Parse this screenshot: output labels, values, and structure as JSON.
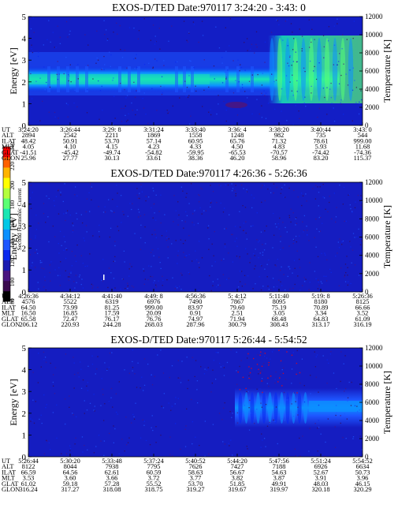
{
  "figure": {
    "colorbar": {
      "label": "Second Harmonic Current",
      "ticks": [
        "80",
        "100",
        "120",
        "140",
        "160",
        "180",
        "200",
        "220",
        "240"
      ],
      "colors": [
        "#000000",
        "#3a0a4e",
        "#4a1580",
        "#1a1ab0",
        "#0a28ee",
        "#1e56ff",
        "#0c90ff",
        "#00c8e6",
        "#19e6b3",
        "#5aff73",
        "#b4ff3c",
        "#ffff00",
        "#ffb400",
        "#ff6000",
        "#ff0000"
      ]
    }
  },
  "chart_data": [
    {
      "type": "heatmap",
      "title": "EXOS-D/TED   Date:970117   3:24:20 - 3:43: 0",
      "ylabel": "Energy [eV]",
      "ylim": [
        0,
        5
      ],
      "yticks": [
        "0",
        "1",
        "2",
        "3",
        "4",
        "5"
      ],
      "y2label": "Temperature [K]",
      "y2lim": [
        0,
        12000
      ],
      "y2ticks": [
        "0",
        "2000",
        "4000",
        "6000",
        "8000",
        "10000",
        "12000"
      ],
      "row_labels": [
        "UT",
        "ALT",
        "ILAT",
        "MLT",
        "GLAT",
        "GLON"
      ],
      "columns": [
        [
          "3:24:20",
          "2894",
          "48.42",
          "4.05",
          "-41.51",
          "25.96"
        ],
        [
          "3:26:44",
          "2542",
          "50.91",
          "4.10",
          "-45.42",
          "27.77"
        ],
        [
          "3:29: 8",
          "2211",
          "53.70",
          "4.15",
          "-49.74",
          "30.13"
        ],
        [
          "3:31:24",
          "1869",
          "57.14",
          "4.23",
          "-54.82",
          "33.61"
        ],
        [
          "3:33:40",
          "1558",
          "60.95",
          "4.33",
          "-59.95",
          "38.36"
        ],
        [
          "3:36: 4",
          "1248",
          "65.76",
          "4.50",
          "-65.53",
          "46.20"
        ],
        [
          "3:38:20",
          "982",
          "71.32",
          "4.83",
          "-70.57",
          "58.96"
        ],
        [
          "3:40:44",
          "735",
          "78.61",
          "5.93",
          "-74.42",
          "83.20"
        ],
        [
          "3:43: 0",
          "544",
          "999.00",
          "11.68",
          "-74.36",
          "115.37"
        ]
      ],
      "features": [
        {
          "x_from": 0,
          "x_to": 0.92,
          "y_from": 1.5,
          "y_to": 2.7,
          "color": "#00c8e6"
        },
        {
          "x_from": 0.58,
          "x_to": 1.0,
          "y_from": 1.6,
          "y_to": 4.8,
          "color": "#19e6b3"
        }
      ]
    },
    {
      "type": "heatmap",
      "title": "EXOS-D/TED   Date:970117   4:26:36 - 5:26:36",
      "ylabel": "Energy [eV]",
      "ylim": [
        0,
        5
      ],
      "yticks": [
        "0",
        "1",
        "2",
        "3",
        "4",
        "5"
      ],
      "y2label": "Temperature [K]",
      "y2lim": [
        0,
        12000
      ],
      "y2ticks": [
        "0",
        "2000",
        "4000",
        "6000",
        "8000",
        "10000",
        "12000"
      ],
      "row_labels": [
        "UT",
        "ALT",
        "ILAT",
        "MLT",
        "GLAT",
        "GLON"
      ],
      "columns": [
        [
          "4:26:36",
          "4576",
          "64.50",
          "16.50",
          "65.58",
          "206.12"
        ],
        [
          "4:34:12",
          "5522",
          "73.99",
          "16.85",
          "72.47",
          "220.93"
        ],
        [
          "4:41:40",
          "6319",
          "81.25",
          "17.59",
          "76.17",
          "244.28"
        ],
        [
          "4:49: 8",
          "6976",
          "999.00",
          "20.09",
          "76.76",
          "268.03"
        ],
        [
          "4:56:36",
          "7490",
          "83.97",
          "0.91",
          "74.97",
          "287.96"
        ],
        [
          "5: 4:12",
          "7867",
          "79.60",
          "2.51",
          "71.94",
          "300.79"
        ],
        [
          "5:11:40",
          "8095",
          "75.19",
          "3.05",
          "68.48",
          "308.43"
        ],
        [
          "5:19: 8",
          "8180",
          "70.89",
          "3.34",
          "64.83",
          "313.17"
        ],
        [
          "5:26:36",
          "8125",
          "66.66",
          "3.52",
          "61.09",
          "316.19"
        ]
      ],
      "features": []
    },
    {
      "type": "heatmap",
      "title": "EXOS-D/TED   Date:970117   5:26:44 - 5:54:52",
      "ylabel": "Energy [eV]",
      "ylim": [
        0,
        5
      ],
      "yticks": [
        "0",
        "1",
        "2",
        "3",
        "4",
        "5"
      ],
      "y2label": "Temperature [K]",
      "y2lim": [
        0,
        12000
      ],
      "y2ticks": [
        "0",
        "2000",
        "4000",
        "6000",
        "8000",
        "10000",
        "12000"
      ],
      "row_labels": [
        "UT",
        "ALT",
        "ILAT",
        "MLT",
        "GLAT",
        "GLON"
      ],
      "columns": [
        [
          "5:26:44",
          "8122",
          "66.59",
          "3.53",
          "61.02",
          "316.24"
        ],
        [
          "5:30:20",
          "8044",
          "64.56",
          "3.60",
          "59.18",
          "317.27"
        ],
        [
          "5:33:48",
          "7938",
          "62.61",
          "3.66",
          "57.28",
          "318.08"
        ],
        [
          "5:37:24",
          "7795",
          "60.59",
          "3.72",
          "55.52",
          "318.75"
        ],
        [
          "5:40:52",
          "7626",
          "58.63",
          "3.77",
          "53.70",
          "319.27"
        ],
        [
          "5:44:20",
          "7427",
          "56.67",
          "3.82",
          "51.85",
          "319.67"
        ],
        [
          "5:47:56",
          "7188",
          "54.63",
          "3.87",
          "49.91",
          "319.97"
        ],
        [
          "5:51:24",
          "6926",
          "52.67",
          "3.91",
          "48.03",
          "320.18"
        ],
        [
          "5:54:52",
          "6634",
          "50.73",
          "3.96",
          "46.15",
          "320.29"
        ]
      ],
      "features": [
        {
          "x_from": 0.57,
          "x_to": 1.0,
          "y_from": 1.9,
          "y_to": 3.2,
          "color": "#1e56ff"
        },
        {
          "x_from": 0.84,
          "x_to": 1.0,
          "y_from": 2.1,
          "y_to": 2.7,
          "color": "#0c90ff"
        }
      ]
    }
  ]
}
